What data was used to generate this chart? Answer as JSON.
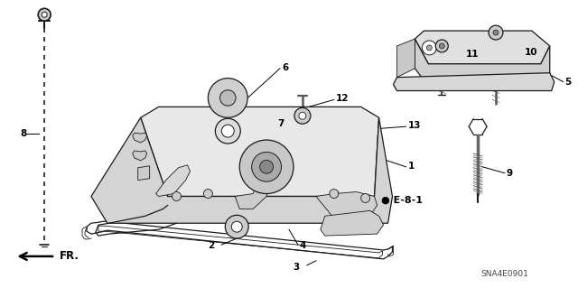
{
  "bg_color": "#ffffff",
  "line_color": "#1a1a1a",
  "diagram_code": "SNA4E0901",
  "fig_width": 6.4,
  "fig_height": 3.19,
  "dpi": 100,
  "label_fontsize": 7.5,
  "code_fontsize": 6.5,
  "fr_fontsize": 8.5,
  "hatch_color": "#888888",
  "shade_color": "#cccccc",
  "shade_color2": "#e8e8e8",
  "shade_dark": "#aaaaaa"
}
